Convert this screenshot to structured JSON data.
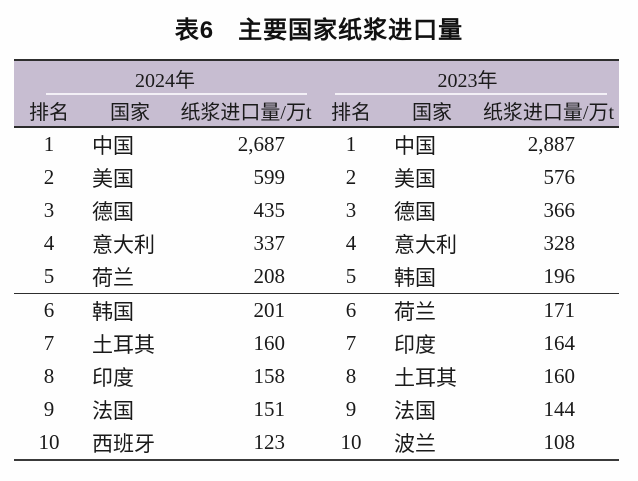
{
  "caption": {
    "label": "表6",
    "title": "主要国家纸浆进口量"
  },
  "table": {
    "columns": [
      "排名",
      "国家",
      "纸浆进口量/万t"
    ],
    "groups": [
      {
        "year": "2024年",
        "rows": [
          {
            "rank": "1",
            "country": "中国",
            "value": "2,687"
          },
          {
            "rank": "2",
            "country": "美国",
            "value": "599"
          },
          {
            "rank": "3",
            "country": "德国",
            "value": "435"
          },
          {
            "rank": "4",
            "country": "意大利",
            "value": "337"
          },
          {
            "rank": "5",
            "country": "荷兰",
            "value": "208"
          },
          {
            "rank": "6",
            "country": "韩国",
            "value": "201"
          },
          {
            "rank": "7",
            "country": "土耳其",
            "value": "160"
          },
          {
            "rank": "8",
            "country": "印度",
            "value": "158"
          },
          {
            "rank": "9",
            "country": "法国",
            "value": "151"
          },
          {
            "rank": "10",
            "country": "西班牙",
            "value": "123"
          }
        ]
      },
      {
        "year": "2023年",
        "rows": [
          {
            "rank": "1",
            "country": "中国",
            "value": "2,887"
          },
          {
            "rank": "2",
            "country": "美国",
            "value": "576"
          },
          {
            "rank": "3",
            "country": "德国",
            "value": "366"
          },
          {
            "rank": "4",
            "country": "意大利",
            "value": "328"
          },
          {
            "rank": "5",
            "country": "韩国",
            "value": "196"
          },
          {
            "rank": "6",
            "country": "荷兰",
            "value": "171"
          },
          {
            "rank": "7",
            "country": "印度",
            "value": "164"
          },
          {
            "rank": "8",
            "country": "土耳其",
            "value": "160"
          },
          {
            "rank": "9",
            "country": "法国",
            "value": "144"
          },
          {
            "rank": "10",
            "country": "波兰",
            "value": "108"
          }
        ]
      }
    ]
  },
  "colors": {
    "header_bg": "#c7bdd1",
    "rule": "#2e2e2e",
    "cline": "#f3f0f6",
    "text": "#1a1a1a",
    "page_bg": "#fefefe"
  }
}
